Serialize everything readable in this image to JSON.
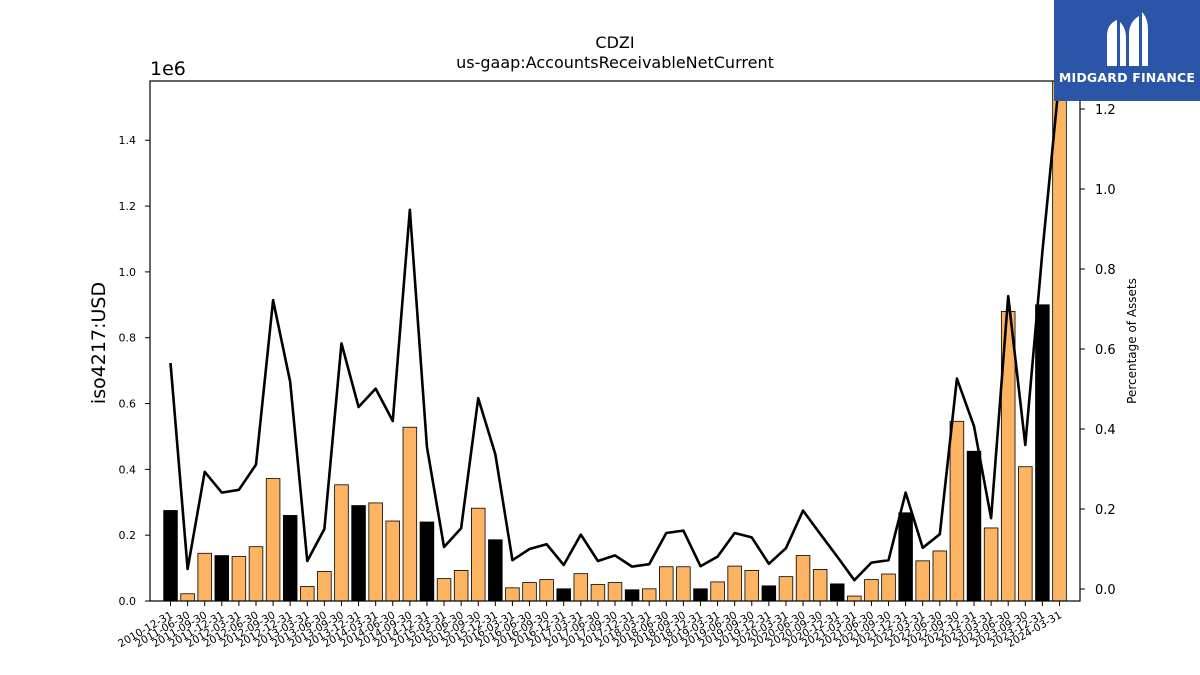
{
  "brand": {
    "name": "MIDGARD FINANCE",
    "bg_color": "#2b56a8"
  },
  "chart_data": {
    "type": "bar",
    "title": "CDZI",
    "subtitle": "us-gaap:AccountsReceivableNetCurrent",
    "ylabel": "iso4217:USD",
    "y2label": "Percentage of Assets",
    "y_multiplier": "1e6",
    "ylim": [
      0,
      1.58
    ],
    "y2lim": [
      -0.03,
      1.27
    ],
    "yticks": [
      "0.0",
      "0.2",
      "0.4",
      "0.6",
      "0.8",
      "1.0",
      "1.2",
      "1.4"
    ],
    "y2ticks": [
      "0.0",
      "0.2",
      "0.4",
      "0.6",
      "0.8",
      "1.0",
      "1.2"
    ],
    "categories": [
      "2010-12-31",
      "2011-06-30",
      "2011-09-30",
      "2011-12-31",
      "2012-03-31",
      "2012-06-30",
      "2012-09-30",
      "2012-12-31",
      "2013-03-31",
      "2013-06-30",
      "2013-09-30",
      "2013-12-31",
      "2014-03-31",
      "2014-06-30",
      "2014-09-30",
      "2014-12-31",
      "2015-03-31",
      "2015-06-30",
      "2015-09-30",
      "2015-12-31",
      "2016-03-31",
      "2016-06-30",
      "2016-09-30",
      "2016-12-31",
      "2017-03-31",
      "2017-06-30",
      "2017-09-30",
      "2017-12-31",
      "2018-03-31",
      "2018-06-30",
      "2018-09-30",
      "2018-12-31",
      "2019-03-31",
      "2019-06-30",
      "2019-09-30",
      "2019-12-31",
      "2020-03-31",
      "2020-06-30",
      "2020-09-30",
      "2020-12-31",
      "2021-03-31",
      "2021-06-30",
      "2021-09-30",
      "2021-12-31",
      "2022-03-31",
      "2022-06-30",
      "2022-09-30",
      "2022-12-31",
      "2023-03-31",
      "2023-06-30",
      "2023-09-30",
      "2023-12-31",
      "2024-03-31"
    ],
    "series": [
      {
        "kind": "bar",
        "unit": "millions USD",
        "values": [
          0.275,
          0.022,
          0.145,
          0.138,
          0.135,
          0.165,
          0.372,
          0.26,
          0.044,
          0.09,
          0.353,
          0.29,
          0.298,
          0.243,
          0.528,
          0.24,
          0.068,
          0.093,
          0.282,
          0.186,
          0.04,
          0.056,
          0.065,
          0.037,
          0.083,
          0.05,
          0.056,
          0.034,
          0.037,
          0.104,
          0.104,
          0.037,
          0.058,
          0.106,
          0.093,
          0.046,
          0.074,
          0.138,
          0.096,
          0.052,
          0.015,
          0.065,
          0.082,
          0.268,
          0.122,
          0.152,
          0.546,
          0.455,
          0.222,
          0.88,
          0.408,
          0.9,
          1.58
        ],
        "bar_colors": [
          "#000000",
          "#fdb462",
          "#fdb462",
          "#000000",
          "#fdb462",
          "#fdb462",
          "#fdb462",
          "#000000",
          "#fdb462",
          "#fdb462",
          "#fdb462",
          "#000000",
          "#fdb462",
          "#fdb462",
          "#fdb462",
          "#000000",
          "#fdb462",
          "#fdb462",
          "#fdb462",
          "#000000",
          "#fdb462",
          "#fdb462",
          "#fdb462",
          "#000000",
          "#fdb462",
          "#fdb462",
          "#fdb462",
          "#000000",
          "#fdb462",
          "#fdb462",
          "#fdb462",
          "#000000",
          "#fdb462",
          "#fdb462",
          "#fdb462",
          "#000000",
          "#fdb462",
          "#fdb462",
          "#fdb462",
          "#000000",
          "#fdb462",
          "#fdb462",
          "#fdb462",
          "#000000",
          "#fdb462",
          "#fdb462",
          "#fdb462",
          "#000000",
          "#fdb462",
          "#fdb462",
          "#fdb462",
          "#000000",
          "#fdb462"
        ]
      },
      {
        "kind": "line",
        "axis": "right",
        "color": "#000000",
        "values": [
          0.565,
          0.05,
          0.293,
          0.241,
          0.248,
          0.311,
          0.722,
          0.518,
          0.07,
          0.15,
          0.614,
          0.455,
          0.501,
          0.42,
          0.948,
          0.355,
          0.105,
          0.152,
          0.477,
          0.337,
          0.072,
          0.1,
          0.112,
          0.06,
          0.136,
          0.07,
          0.084,
          0.056,
          0.062,
          0.14,
          0.146,
          0.057,
          0.081,
          0.14,
          0.129,
          0.063,
          0.102,
          0.196,
          0.138,
          0.081,
          0.022,
          0.066,
          0.072,
          0.241,
          0.103,
          0.137,
          0.526,
          0.407,
          0.177,
          0.732,
          0.36,
          0.843,
          1.28
        ]
      }
    ],
    "grid": false,
    "legend": "none"
  }
}
